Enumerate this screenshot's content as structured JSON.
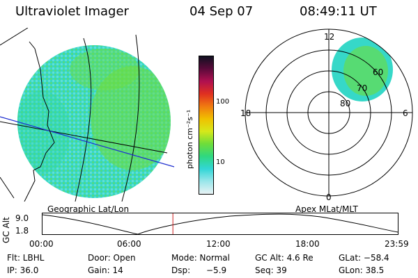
{
  "header": {
    "title": "Ultraviolet Imager",
    "date": "04 Sep 07",
    "time": "08:49:11 UT"
  },
  "colorbar": {
    "label": "photon cm⁻²s⁻¹",
    "ticks": [
      "100",
      "10"
    ],
    "colors": [
      "#101020",
      "#5a0a3a",
      "#b01050",
      "#e03020",
      "#f07a10",
      "#f0c000",
      "#d6e81a",
      "#6edd3a",
      "#2fd880",
      "#32d6d6",
      "#9ae6ea",
      "#e8f2f4"
    ]
  },
  "polar": {
    "mlt_labels": {
      "top": "12",
      "left": "18",
      "right": "6",
      "bottom": "0"
    },
    "lat_labels": [
      "60",
      "70",
      "80"
    ]
  },
  "panels": {
    "geo_label": "Geographic Lat/Lon",
    "apex_label": "Apex MLat/MLT"
  },
  "altitude_strip": {
    "axis_label": "GC Alt",
    "y_ticks": [
      "9.0",
      "1.8"
    ],
    "x_ticks": [
      "00:00",
      "06:00",
      "12:00",
      "18:00",
      "23:59"
    ],
    "current_time_fraction": 0.367
  },
  "status": {
    "flt": "Flt: LBHL",
    "door": "Door: Open",
    "mode": "Mode: Normal",
    "gc_alt": "GC Alt: 4.6 Re",
    "glat": "GLat: −58.4",
    "ip": "IP: 36.0",
    "gain": "Gain: 14",
    "dsp": "Dsp:",
    "dsp_val": "−5.9",
    "seq": "Seq: 39",
    "glon": "GLon: 38.5"
  },
  "accent_colors": {
    "aurora_green": "#6edd3a",
    "aurora_cyan": "#32d6d6",
    "marker_red": "#d02020",
    "terminator_blue": "#2030d0"
  }
}
